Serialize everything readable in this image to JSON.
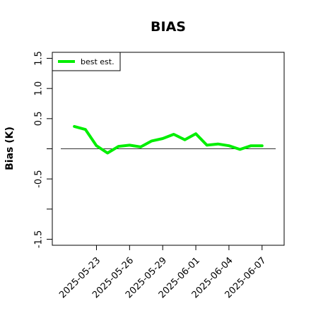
{
  "chart_data": {
    "type": "line",
    "title": "BIAS",
    "xlabel": "",
    "ylabel": "Bias (K)",
    "ylim": [
      -1.6,
      1.6
    ],
    "yticks": [
      -1.5,
      -1.0,
      -0.5,
      0.0,
      0.5,
      1.0,
      1.5
    ],
    "ytick_labels": [
      "-1.5",
      "",
      "-0.5",
      "",
      "0.5",
      "1.0",
      "1.5"
    ],
    "xlim": [
      "2025-05-19",
      "2025-06-09"
    ],
    "xticks": [
      "2025-05-23",
      "2025-05-26",
      "2025-05-29",
      "2025-06-01",
      "2025-06-04",
      "2025-06-07"
    ],
    "reference_line": 0,
    "legend": {
      "placement": "top-left",
      "entries": [
        "best est."
      ]
    },
    "series": [
      {
        "name": "best est.",
        "color": "#00ee00",
        "x": [
          "2025-05-21",
          "2025-05-22",
          "2025-05-23",
          "2025-05-24",
          "2025-05-25",
          "2025-05-26",
          "2025-05-27",
          "2025-05-28",
          "2025-05-29",
          "2025-05-30",
          "2025-05-31",
          "2025-06-01",
          "2025-06-02",
          "2025-06-03",
          "2025-06-04",
          "2025-06-05",
          "2025-06-06",
          "2025-06-07"
        ],
        "y": [
          0.37,
          0.32,
          0.05,
          -0.07,
          0.04,
          0.06,
          0.03,
          0.13,
          0.17,
          0.24,
          0.15,
          0.25,
          0.06,
          0.08,
          0.05,
          -0.01,
          0.05,
          0.05
        ]
      }
    ]
  }
}
